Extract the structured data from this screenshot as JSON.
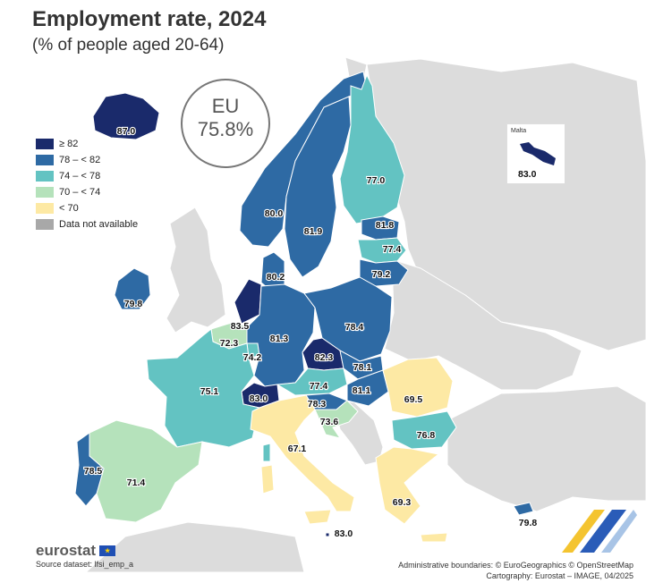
{
  "title": "Employment rate, 2024",
  "subtitle": "(% of people aged 20-64)",
  "eu": {
    "label": "EU",
    "value": "75.8%"
  },
  "legend": [
    {
      "label": "≥ 82",
      "color": "#1a2a6b"
    },
    {
      "label": "78 – < 82",
      "color": "#2e6aa4"
    },
    {
      "label": "74 – < 78",
      "color": "#63c3c2"
    },
    {
      "label": "70 – < 74",
      "color": "#b5e2bb"
    },
    {
      "label": "< 70",
      "color": "#fde9a4"
    },
    {
      "label": "Data not available",
      "color": "#a8a8a8"
    }
  ],
  "countries": [
    {
      "name": "Iceland",
      "value": "87.0",
      "color": "#1a2a6b"
    },
    {
      "name": "Norway",
      "value": "80.0",
      "color": "#2e6aa4"
    },
    {
      "name": "Sweden",
      "value": "81.9",
      "color": "#2e6aa4"
    },
    {
      "name": "Finland",
      "value": "77.0",
      "color": "#63c3c2"
    },
    {
      "name": "Estonia",
      "value": "81.8",
      "color": "#2e6aa4"
    },
    {
      "name": "Latvia",
      "value": "77.4",
      "color": "#63c3c2"
    },
    {
      "name": "Lithuania",
      "value": "79.2",
      "color": "#2e6aa4"
    },
    {
      "name": "Denmark",
      "value": "80.2",
      "color": "#2e6aa4"
    },
    {
      "name": "Ireland",
      "value": "79.8",
      "color": "#2e6aa4"
    },
    {
      "name": "Netherlands",
      "value": "83.5",
      "color": "#1a2a6b"
    },
    {
      "name": "Belgium",
      "value": "72.3",
      "color": "#b5e2bb"
    },
    {
      "name": "Luxembourg",
      "value": "74.2",
      "color": "#63c3c2"
    },
    {
      "name": "Germany",
      "value": "81.3",
      "color": "#2e6aa4"
    },
    {
      "name": "Poland",
      "value": "78.4",
      "color": "#2e6aa4"
    },
    {
      "name": "Czechia",
      "value": "82.3",
      "color": "#1a2a6b"
    },
    {
      "name": "Slovakia",
      "value": "78.1",
      "color": "#2e6aa4"
    },
    {
      "name": "Austria",
      "value": "77.4",
      "color": "#63c3c2"
    },
    {
      "name": "Hungary",
      "value": "81.1",
      "color": "#2e6aa4"
    },
    {
      "name": "Slovenia",
      "value": "78.3",
      "color": "#2e6aa4"
    },
    {
      "name": "Croatia",
      "value": "73.6",
      "color": "#b5e2bb"
    },
    {
      "name": "Switzerland",
      "value": "83.0",
      "color": "#1a2a6b"
    },
    {
      "name": "France",
      "value": "75.1",
      "color": "#63c3c2"
    },
    {
      "name": "Spain",
      "value": "71.4",
      "color": "#b5e2bb"
    },
    {
      "name": "Portugal",
      "value": "78.5",
      "color": "#2e6aa4"
    },
    {
      "name": "Italy",
      "value": "67.1",
      "color": "#fde9a4"
    },
    {
      "name": "Romania",
      "value": "69.5",
      "color": "#fde9a4"
    },
    {
      "name": "Bulgaria",
      "value": "76.8",
      "color": "#63c3c2"
    },
    {
      "name": "Greece",
      "value": "69.3",
      "color": "#fde9a4"
    },
    {
      "name": "Cyprus",
      "value": "79.8",
      "color": "#2e6aa4"
    },
    {
      "name": "Malta",
      "value": "83.0",
      "color": "#1a2a6b"
    }
  ],
  "inset": {
    "name": "Malta",
    "value": "83.0"
  },
  "footer": {
    "brand": "eurostat",
    "source": "Source dataset: lfsi_emp_a",
    "credits1": "Administrative boundaries: © EuroGeographics © OpenStreetMap",
    "credits2": "Cartography: Eurostat – IMAGE, 04/2025"
  },
  "colors": {
    "sea": "#ffffff",
    "other_land": "#dcdcdc",
    "border": "#ffffff"
  }
}
